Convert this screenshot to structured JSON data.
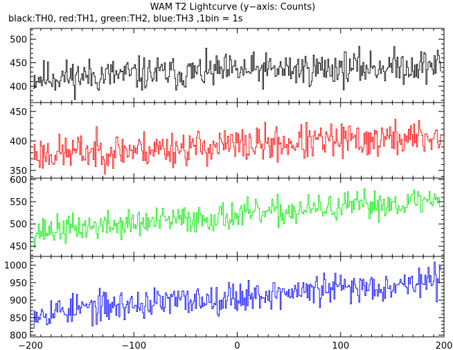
{
  "chart_data": {
    "type": "line",
    "title": "WAM T2 Lightcurve (y−axis: Counts)",
    "subtitle": "black:TH0, red:TH1, green:TH2, blue:TH3 ,1bin = 1s",
    "xlim": [
      -200,
      200
    ],
    "x_ticks": [
      -200,
      -100,
      0,
      100,
      200
    ],
    "x_tick_labels": [
      "−200",
      "−100",
      "0",
      "100",
      "200"
    ],
    "x_range_data": [
      -197,
      197
    ],
    "panels": [
      {
        "name": "TH0",
        "color": "#000000",
        "ylim": [
          365,
          523
        ],
        "y_ticks": [
          400,
          450,
          500
        ],
        "trend_start": 418,
        "trend_end": 445,
        "noise_amplitude": 24,
        "seed": 11
      },
      {
        "name": "TH1",
        "color": "#ff0000",
        "ylim": [
          337,
          465
        ],
        "y_ticks": [
          350,
          400,
          450
        ],
        "trend_start": 378,
        "trend_end": 407,
        "noise_amplitude": 20,
        "seed": 23
      },
      {
        "name": "TH2",
        "color": "#00ee00",
        "ylim": [
          427,
          603
        ],
        "y_ticks": [
          450,
          500,
          550,
          600
        ],
        "trend_start": 483,
        "trend_end": 555,
        "noise_amplitude": 21,
        "seed": 37
      },
      {
        "name": "TH3",
        "color": "#0000ff",
        "ylim": [
          795,
          1025
        ],
        "y_ticks": [
          800,
          850,
          900,
          950,
          1000
        ],
        "trend_start": 865,
        "trend_end": 955,
        "noise_amplitude": 29,
        "seed": 53
      }
    ]
  }
}
